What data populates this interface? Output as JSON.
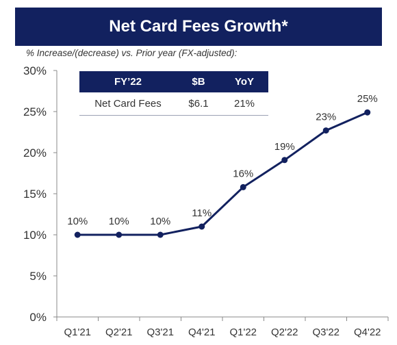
{
  "header": {
    "title": "Net Card Fees Growth*",
    "subtitle": "% Increase/(decrease) vs. Prior year (FX-adjusted):"
  },
  "table": {
    "headers": [
      "FY’22",
      "$B",
      "YoY"
    ],
    "row": [
      "Net Card Fees",
      "$6.1",
      "21%"
    ]
  },
  "colors": {
    "navy": "#12215f",
    "text": "#333333",
    "axis": "#888888"
  },
  "chart_data": {
    "type": "line",
    "categories": [
      "Q1'21",
      "Q2'21",
      "Q3'21",
      "Q4'21",
      "Q1'22",
      "Q2'22",
      "Q3'22",
      "Q4'22"
    ],
    "series": [
      {
        "values": [
          10,
          10,
          10,
          11,
          15.8,
          19.1,
          22.7,
          24.9
        ],
        "labels": [
          "10%",
          "10%",
          "10%",
          "11%",
          "16%",
          "19%",
          "23%",
          "25%"
        ]
      }
    ],
    "ylim": [
      0,
      30
    ],
    "yticks": [
      0,
      5,
      10,
      15,
      20,
      25,
      30
    ],
    "ytick_labels": [
      "0%",
      "5%",
      "10%",
      "15%",
      "20%",
      "25%",
      "30%"
    ],
    "grid": false,
    "xlabel": "",
    "ylabel": ""
  }
}
